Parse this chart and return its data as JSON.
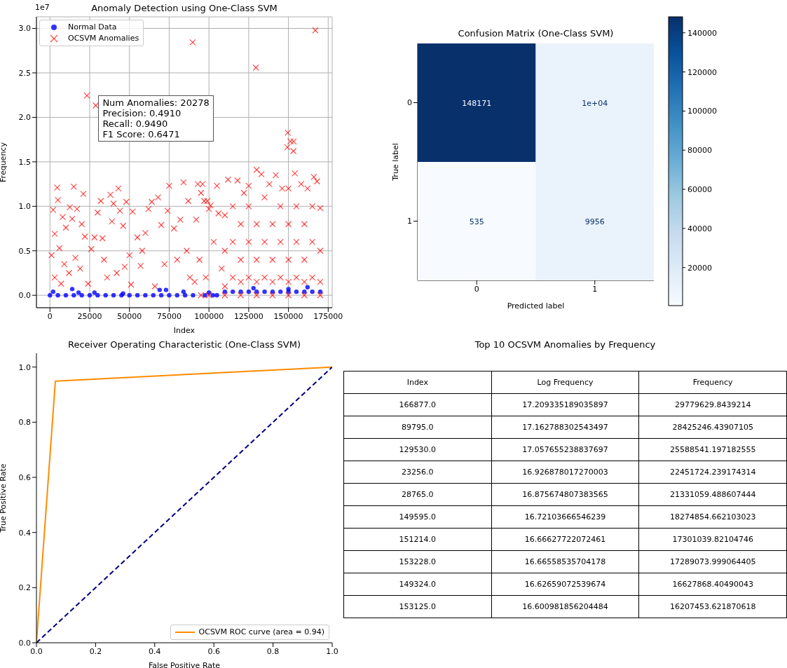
{
  "chart_data": [
    {
      "type": "scatter",
      "title": "Anomaly Detection using One-Class SVM",
      "xlabel": "Index",
      "ylabel": "Frequency",
      "grid": true,
      "legend": "top left",
      "annotations": [
        "1e7",
        "Num Anomalies: 20278",
        "Precision: 0.4910",
        "Recall: 0.9490",
        "F1 Score: 0.6471"
      ],
      "xlim": [
        -8500,
        177500
      ],
      "ylim": [
        -0.14,
        3.13
      ],
      "xticks": [
        0,
        25000,
        50000,
        75000,
        100000,
        125000,
        150000,
        175000
      ],
      "yticks": [
        {
          "value": 0,
          "label": "0.0"
        },
        0.5,
        {
          "value": 1,
          "label": "1.0"
        },
        1.5,
        {
          "value": 2,
          "label": "2.0"
        },
        2.5,
        {
          "value": 3,
          "label": "3.0"
        }
      ],
      "series": [
        {
          "name": "Normal Data",
          "color": "#0000ff",
          "marker": "circle",
          "x": [
            0,
            5000,
            10000,
            15000,
            20000,
            25000,
            30000,
            35000,
            40000,
            45000,
            50000,
            55000,
            60000,
            65000,
            70000,
            75000,
            80000,
            85000,
            90000,
            97500,
            102500,
            105000,
            2000,
            14000,
            18000,
            28000,
            46000,
            69000,
            73000,
            84000,
            100000,
            110000,
            115000,
            120000,
            125000,
            130000,
            135000,
            140000,
            145000,
            150000,
            155000,
            160000,
            165000,
            170000,
            128000,
            150000,
            162000
          ],
          "values": [
            0,
            0,
            0,
            0,
            0,
            0,
            0,
            0,
            0,
            0,
            0,
            0,
            0,
            0,
            0,
            0,
            0,
            0,
            0,
            0,
            0,
            0,
            0.04,
            0.07,
            0.03,
            0.03,
            0.02,
            0.06,
            0.06,
            0.04,
            0.03,
            0.04,
            0.04,
            0.04,
            0.04,
            0.04,
            0.04,
            0.04,
            0.04,
            0.04,
            0.04,
            0.04,
            0.04,
            0.04,
            0.08,
            0.07,
            0.09
          ]
        },
        {
          "name": "OCSVM Anomalies",
          "color": "#ff0000",
          "marker": "cross",
          "x": [
            166877,
            89795,
            129530,
            23256,
            28765,
            149595,
            151214,
            153228,
            149324,
            153125,
            4500,
            15000,
            21000,
            5000,
            2000,
            12500,
            17000,
            8000,
            14000,
            20000,
            22000,
            10000,
            3000,
            1000,
            6000,
            9000,
            3000,
            12000,
            16000,
            19000,
            24000,
            26000,
            28000,
            30000,
            32000,
            34000,
            36000,
            38000,
            39000,
            40000,
            43000,
            44000,
            46000,
            48000,
            50000,
            52000,
            51000,
            55000,
            57000,
            60000,
            62000,
            64000,
            66000,
            68000,
            70000,
            72000,
            74000,
            75000,
            78000,
            80000,
            82000,
            84000,
            86000,
            87000,
            88000,
            58000,
            42000,
            33000,
            7000,
            47000,
            92000,
            93000,
            95000,
            96000,
            97000,
            99000,
            100000,
            101000,
            105000,
            106000,
            91000,
            94000,
            98000,
            103000,
            108000,
            95000,
            100000,
            112000,
            118000,
            122000,
            125000,
            130000,
            133000,
            138000,
            142000,
            146000,
            154000,
            158000,
            162000,
            166000,
            168000,
            170000,
            110000,
            110000,
            110000,
            115000,
            115000,
            115000,
            120000,
            120000,
            120000,
            125000,
            125000,
            125000,
            130000,
            130000,
            130000,
            135000,
            135000,
            135000,
            140000,
            140000,
            140000,
            145000,
            145000,
            145000,
            150000,
            150000,
            150000,
            150000,
            155000,
            155000,
            155000,
            160000,
            160000,
            160000,
            165000,
            165000,
            165000,
            170000,
            170000,
            110000,
            120000,
            130000,
            140000,
            150000,
            160000,
            170000
          ],
          "values": [
            2.978,
            2.843,
            2.559,
            2.245,
            2.133,
            1.827,
            1.73,
            1.729,
            1.663,
            1.621,
            1.21,
            1.22,
            1.14,
            1.07,
            0.96,
            0.99,
            0.97,
            0.88,
            0.86,
            0.8,
            0.66,
            0.76,
            0.69,
            0.45,
            0.53,
            0.35,
            0.2,
            0.25,
            0.42,
            0.3,
            0.13,
            0.52,
            0.65,
            0.93,
            1.06,
            0.4,
            0.2,
            1.13,
            0.83,
            1.03,
            1.2,
            0.95,
            0.78,
            1.05,
            0.45,
            0.94,
            0.12,
            0.65,
            0.33,
            0.7,
            0.97,
            1.05,
            0.1,
            1.1,
            0.79,
            0.35,
            0.95,
            1.23,
            0.75,
            0.4,
            0.85,
            1.27,
            0.5,
            1.06,
            0.2,
            0.5,
            0.25,
            0.64,
            0.13,
            0.32,
            0.85,
            1.25,
            1.15,
            1.25,
            1.06,
            1.06,
            0.97,
            1.01,
            1.23,
            0.92,
            0.15,
            0.4,
            0.2,
            0.6,
            0.3,
            0,
            0,
            1.3,
            1.29,
            1.15,
            1.23,
            1.41,
            1.36,
            1.25,
            1.35,
            1.2,
            1.37,
            1.25,
            1.2,
            1.33,
            1.28,
            0.98,
            0.1,
            0.5,
            0.9,
            0.2,
            0.6,
            1.0,
            0.15,
            0.4,
            0.8,
            0.2,
            0.6,
            1.0,
            0.15,
            0.4,
            0.8,
            0.2,
            0.6,
            1.1,
            0.15,
            0.4,
            0.8,
            0.2,
            0.6,
            1.0,
            0.15,
            0.4,
            0.8,
            1.2,
            0.2,
            0.6,
            1.0,
            0.15,
            0.4,
            0.8,
            0.2,
            0.6,
            1.0,
            0.15,
            0.5,
            0,
            0,
            0,
            0,
            0,
            0,
            0
          ]
        }
      ]
    },
    {
      "type": "heatmap",
      "title": "Confusion Matrix (One-Class SVM)",
      "xlabel": "Predicted label",
      "ylabel": "True label",
      "categories": [
        "0",
        "1"
      ],
      "y_categories": [
        "0",
        "1"
      ],
      "cells": [
        [
          148171,
          10000
        ],
        [
          535,
          9956
        ]
      ],
      "cell_labels": [
        [
          "148171",
          "1e+04"
        ],
        [
          "535",
          "9956"
        ]
      ],
      "clim": [
        535,
        148171
      ],
      "cticks": [
        20000,
        40000,
        60000,
        80000,
        100000,
        120000,
        140000
      ]
    },
    {
      "type": "line",
      "title": "Receiver Operating Characteristic (One-Class SVM)",
      "xlabel": "False Positive Rate",
      "ylabel": "True Positive Rate",
      "legend": "bottom right",
      "xlim": [
        0,
        1
      ],
      "ylim": [
        0,
        1.05
      ],
      "xticks": [
        {
          "value": 0,
          "label": "0.0"
        },
        0.2,
        0.4,
        0.6,
        0.8,
        {
          "value": 1,
          "label": "1.0"
        }
      ],
      "yticks": [
        {
          "value": 0,
          "label": "0.0"
        },
        0.2,
        0.4,
        0.6,
        0.8,
        {
          "value": 1,
          "label": "1.0"
        }
      ],
      "series": [
        {
          "name": "OCSVM ROC curve (area = 0.94)",
          "color": "#ff8c00",
          "line_style": "solid",
          "x": [
            0,
            0.064,
            1
          ],
          "values": [
            0,
            0.949,
            1
          ]
        },
        {
          "color": "#000080",
          "line_style": "dashed",
          "x": [
            0,
            1
          ],
          "values": [
            0,
            1
          ]
        }
      ]
    },
    {
      "type": "other",
      "title": "Top 10 OCSVM Anomalies by Frequency",
      "categories": [
        "Index",
        "Log Frequency",
        "Frequency"
      ],
      "cell_labels": [
        [
          "166877.0",
          "17.209335189035897",
          "29779629.8439214"
        ],
        [
          "89795.0",
          "17.162788302543497",
          "28425246.43907105"
        ],
        [
          "129530.0",
          "17.057655238837697",
          "25588541.197182555"
        ],
        [
          "23256.0",
          "16.926878017270003",
          "22451724.239174314"
        ],
        [
          "28765.0",
          "16.875674807383565",
          "21331059.488607444"
        ],
        [
          "149595.0",
          "16.72103666546239",
          "18274854.662103023"
        ],
        [
          "151214.0",
          "16.66627722072461",
          "17301039.82104746"
        ],
        [
          "153228.0",
          "16.66558535704178",
          "17289073.999064405"
        ],
        [
          "149324.0",
          "16.62659072539674",
          "16627868.40490043"
        ],
        [
          "153125.0",
          "16.600981856204484",
          "16207453.621870618"
        ]
      ]
    }
  ]
}
